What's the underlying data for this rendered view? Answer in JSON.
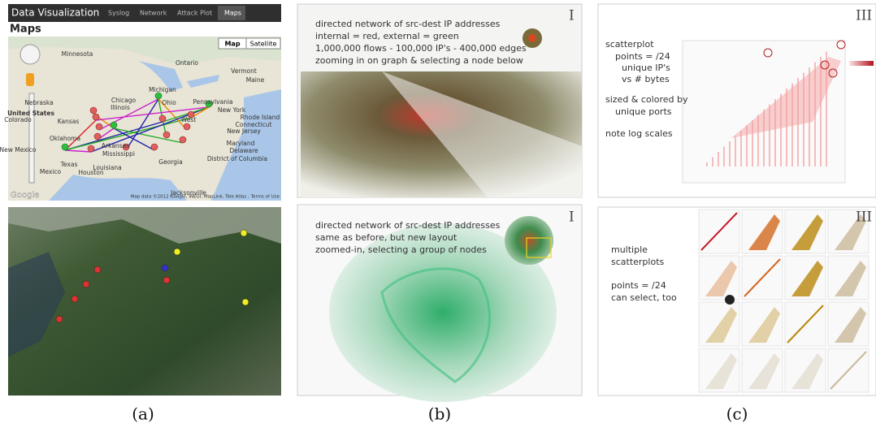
{
  "panel_a": {
    "app_title": "Data Visualization",
    "tabs": [
      "Syslog",
      "Network",
      "Attack Plot",
      "Maps"
    ],
    "heading": "Maps",
    "map_buttons": [
      "Map",
      "Satellite"
    ],
    "map_labels": [
      "Minnesota",
      "Michigan",
      "Ontario",
      "Maine",
      "Vermont",
      "Nebraska",
      "United States",
      "Chicago",
      "Illinois",
      "Ohio",
      "Pennsylvania",
      "New York",
      "Rhode Island",
      "Connecticut",
      "New Jersey",
      "Kansas",
      "Colorado",
      "West",
      "Oklahoma",
      "Arkansas",
      "Mississippi",
      "Maryland",
      "Delaware",
      "District of Columbia",
      "New Mexico",
      "Texas",
      "Louisiana",
      "Georgia",
      "Houston",
      "Jacksonville",
      "Mexico"
    ],
    "logo": "Google",
    "attribution": "Map data ©2012 Google, INEGI, MapLink, Tele Atlas - Terms of Use",
    "caption": "(a)"
  },
  "panel_b": {
    "top_text": [
      "directed network of src-dest IP addresses",
      "internal = red, external = green",
      "1,000,000 flows - 100,000 IP's - 400,000 edges",
      "zooming in on graph & selecting a node below"
    ],
    "top_marker": "I",
    "bottom_text": [
      "directed network of src-dest IP addresses",
      "same as before, but new layout",
      "zoomed-in, selecting a group of nodes"
    ],
    "bottom_marker": "I",
    "caption": "(b)"
  },
  "panel_c": {
    "top_text": [
      "scatterplot",
      "points = /24",
      "unique IP's",
      "vs # bytes",
      "sized & colored by",
      "unique ports",
      "note log scales"
    ],
    "top_marker": "III",
    "bottom_text": [
      "multiple",
      "scatterplots",
      "points = /24",
      "can select, too"
    ],
    "bottom_marker": "III",
    "caption": "(c)"
  }
}
